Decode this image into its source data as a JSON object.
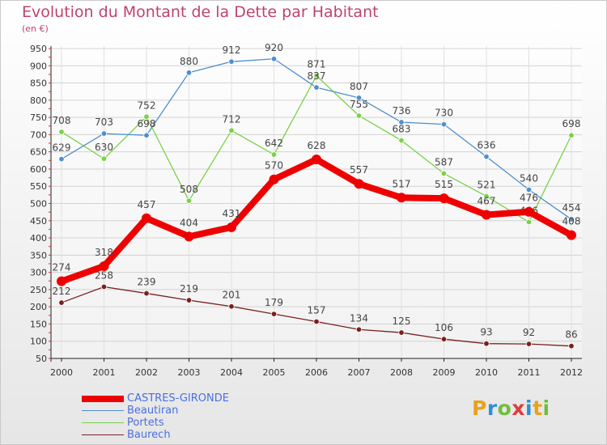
{
  "title": "Evolution du Montant de la Dette par Habitant",
  "subtitle": "(en €)",
  "logo": {
    "text": "Proxiti",
    "letter_colors": [
      "#e8a21c",
      "#2f8fd8",
      "#6fbf3a",
      "#e23a3a",
      "#2f8fd8",
      "#e8a21c",
      "#6fbf3a"
    ]
  },
  "chart_data": {
    "type": "line",
    "x": [
      2000,
      2001,
      2002,
      2003,
      2004,
      2005,
      2006,
      2007,
      2008,
      2009,
      2010,
      2011,
      2012
    ],
    "ylim": [
      50,
      950
    ],
    "yticks": [
      50,
      100,
      150,
      200,
      250,
      300,
      350,
      400,
      450,
      500,
      550,
      600,
      650,
      700,
      750,
      800,
      850,
      900,
      950
    ],
    "grid": true,
    "legend_position": "bottom-left",
    "series": [
      {
        "name": "CASTRES-GIRONDE",
        "color": "#ee0000",
        "values": [
          274,
          318,
          457,
          404,
          431,
          570,
          628,
          557,
          517,
          515,
          467,
          476,
          408
        ]
      },
      {
        "name": "Beautiran",
        "color": "#4f8fcf",
        "values": [
          629,
          703,
          698,
          880,
          912,
          920,
          837,
          807,
          736,
          730,
          636,
          540,
          454
        ]
      },
      {
        "name": "Portets",
        "color": "#7ad14a",
        "values": [
          708,
          630,
          752,
          508,
          712,
          642,
          871,
          755,
          683,
          587,
          521,
          446,
          698
        ]
      },
      {
        "name": "Baurech",
        "color": "#7a1f1f",
        "values": [
          212,
          258,
          239,
          219,
          201,
          179,
          157,
          134,
          125,
          106,
          93,
          92,
          86
        ]
      }
    ]
  }
}
